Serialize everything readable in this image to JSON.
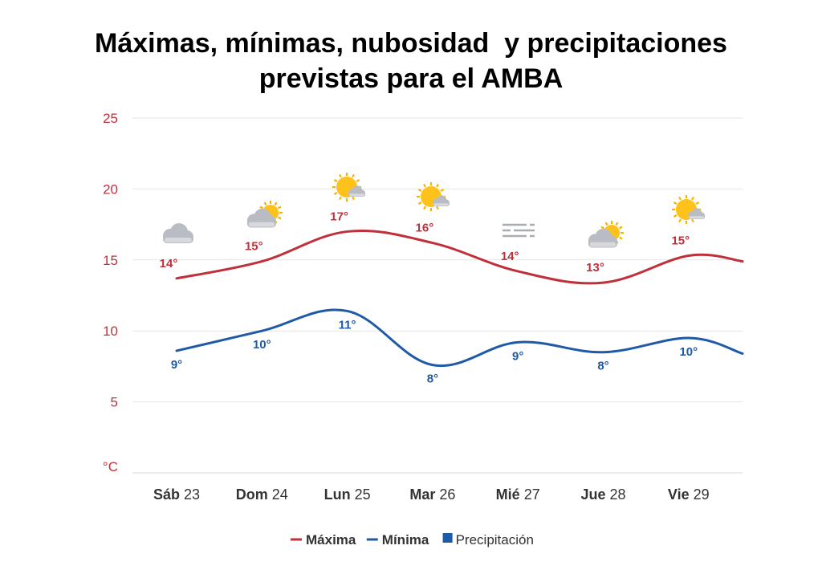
{
  "title": {
    "line1": "Máximas, mínimas, nubosidad  y precipitaciones",
    "line2": "previstas para el AMBA"
  },
  "chart_data": {
    "type": "line",
    "y_unit_label": "°C",
    "ylim": [
      0,
      25
    ],
    "yticks": [
      5,
      10,
      15,
      20,
      25
    ],
    "grid": true,
    "legend_position": "bottom-center",
    "categories": [
      {
        "day": "Sáb",
        "num": "23"
      },
      {
        "day": "Dom",
        "num": "24"
      },
      {
        "day": "Lun",
        "num": "25"
      },
      {
        "day": "Mar",
        "num": "26"
      },
      {
        "day": "Mié",
        "num": "27"
      },
      {
        "day": "Jue",
        "num": "28"
      },
      {
        "day": "Vie",
        "num": "29"
      }
    ],
    "series": [
      {
        "name": "Máxima",
        "color": "#c0303a",
        "values": [
          13.7,
          14.9,
          17.0,
          16.2,
          14.2,
          13.4,
          15.3
        ],
        "labels": [
          "14°",
          "15°",
          "17°",
          "16°",
          "14°",
          "13°",
          "15°"
        ],
        "end_value": 14.9
      },
      {
        "name": "Mínima",
        "color": "#1f5aa6",
        "values": [
          8.6,
          10.0,
          11.4,
          7.6,
          9.2,
          8.5,
          9.5
        ],
        "labels": [
          "9°",
          "10°",
          "11°",
          "8°",
          "9°",
          "8°",
          "10°"
        ],
        "end_value": 8.4
      }
    ],
    "legend": [
      {
        "name": "Máxima",
        "color": "#c0303a",
        "marker": "line"
      },
      {
        "name": "Mínima",
        "color": "#1f5aa6",
        "marker": "line"
      },
      {
        "name": "Precipitación",
        "color": "#1f5aa6",
        "marker": "square"
      }
    ],
    "weather_icons": [
      "cloudy-icon",
      "partly-sunny-icon",
      "mostly-sunny-icon",
      "mostly-sunny-icon",
      "fog-icon",
      "partly-sunny-icon",
      "mostly-sunny-icon"
    ]
  }
}
